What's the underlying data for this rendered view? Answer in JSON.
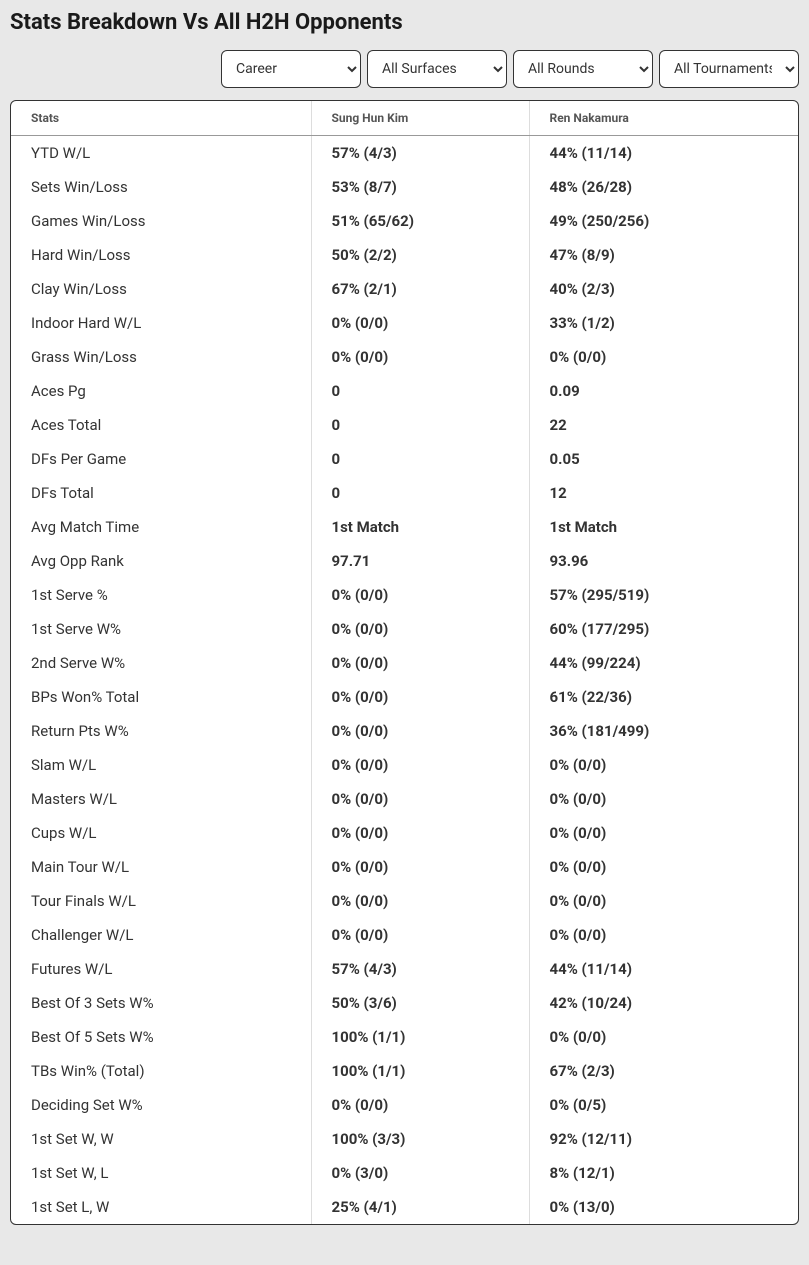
{
  "title": "Stats Breakdown Vs All H2H Opponents",
  "filters": {
    "period": {
      "selected": "Career",
      "options": [
        "Career"
      ]
    },
    "surface": {
      "selected": "All Surfaces",
      "options": [
        "All Surfaces"
      ]
    },
    "round": {
      "selected": "All Rounds",
      "options": [
        "All Rounds"
      ]
    },
    "tournament": {
      "selected": "All Tournaments",
      "options": [
        "All Tournaments"
      ]
    }
  },
  "table": {
    "headers": {
      "stats": "Stats",
      "player1": "Sung Hun Kim",
      "player2": "Ren Nakamura"
    },
    "rows": [
      {
        "label": "YTD W/L",
        "p1": "57% (4/3)",
        "p2": "44% (11/14)"
      },
      {
        "label": "Sets Win/Loss",
        "p1": "53% (8/7)",
        "p2": "48% (26/28)"
      },
      {
        "label": "Games Win/Loss",
        "p1": "51% (65/62)",
        "p2": "49% (250/256)"
      },
      {
        "label": "Hard Win/Loss",
        "p1": "50% (2/2)",
        "p2": "47% (8/9)"
      },
      {
        "label": "Clay Win/Loss",
        "p1": "67% (2/1)",
        "p2": "40% (2/3)"
      },
      {
        "label": "Indoor Hard W/L",
        "p1": "0% (0/0)",
        "p2": "33% (1/2)"
      },
      {
        "label": "Grass Win/Loss",
        "p1": "0% (0/0)",
        "p2": "0% (0/0)"
      },
      {
        "label": "Aces Pg",
        "p1": "0",
        "p2": "0.09"
      },
      {
        "label": "Aces Total",
        "p1": "0",
        "p2": "22"
      },
      {
        "label": "DFs Per Game",
        "p1": "0",
        "p2": "0.05"
      },
      {
        "label": "DFs Total",
        "p1": "0",
        "p2": "12"
      },
      {
        "label": "Avg Match Time",
        "p1": "1st Match",
        "p2": "1st Match"
      },
      {
        "label": "Avg Opp Rank",
        "p1": "97.71",
        "p2": "93.96"
      },
      {
        "label": "1st Serve %",
        "p1": "0% (0/0)",
        "p2": "57% (295/519)"
      },
      {
        "label": "1st Serve W%",
        "p1": "0% (0/0)",
        "p2": "60% (177/295)"
      },
      {
        "label": "2nd Serve W%",
        "p1": "0% (0/0)",
        "p2": "44% (99/224)"
      },
      {
        "label": "BPs Won% Total",
        "p1": "0% (0/0)",
        "p2": "61% (22/36)"
      },
      {
        "label": "Return Pts W%",
        "p1": "0% (0/0)",
        "p2": "36% (181/499)"
      },
      {
        "label": "Slam W/L",
        "p1": "0% (0/0)",
        "p2": "0% (0/0)"
      },
      {
        "label": "Masters W/L",
        "p1": "0% (0/0)",
        "p2": "0% (0/0)"
      },
      {
        "label": "Cups W/L",
        "p1": "0% (0/0)",
        "p2": "0% (0/0)"
      },
      {
        "label": "Main Tour W/L",
        "p1": "0% (0/0)",
        "p2": "0% (0/0)"
      },
      {
        "label": "Tour Finals W/L",
        "p1": "0% (0/0)",
        "p2": "0% (0/0)"
      },
      {
        "label": "Challenger W/L",
        "p1": "0% (0/0)",
        "p2": "0% (0/0)"
      },
      {
        "label": "Futures W/L",
        "p1": "57% (4/3)",
        "p2": "44% (11/14)"
      },
      {
        "label": "Best Of 3 Sets W%",
        "p1": "50% (3/6)",
        "p2": "42% (10/24)"
      },
      {
        "label": "Best Of 5 Sets W%",
        "p1": "100% (1/1)",
        "p2": "0% (0/0)"
      },
      {
        "label": "TBs Win% (Total)",
        "p1": "100% (1/1)",
        "p2": "67% (2/3)"
      },
      {
        "label": "Deciding Set W%",
        "p1": "0% (0/0)",
        "p2": "0% (0/5)"
      },
      {
        "label": "1st Set W, W",
        "p1": "100% (3/3)",
        "p2": "92% (12/11)"
      },
      {
        "label": "1st Set W, L",
        "p1": "0% (3/0)",
        "p2": "8% (12/1)"
      },
      {
        "label": "1st Set L, W",
        "p1": "25% (4/1)",
        "p2": "0% (13/0)"
      }
    ]
  }
}
